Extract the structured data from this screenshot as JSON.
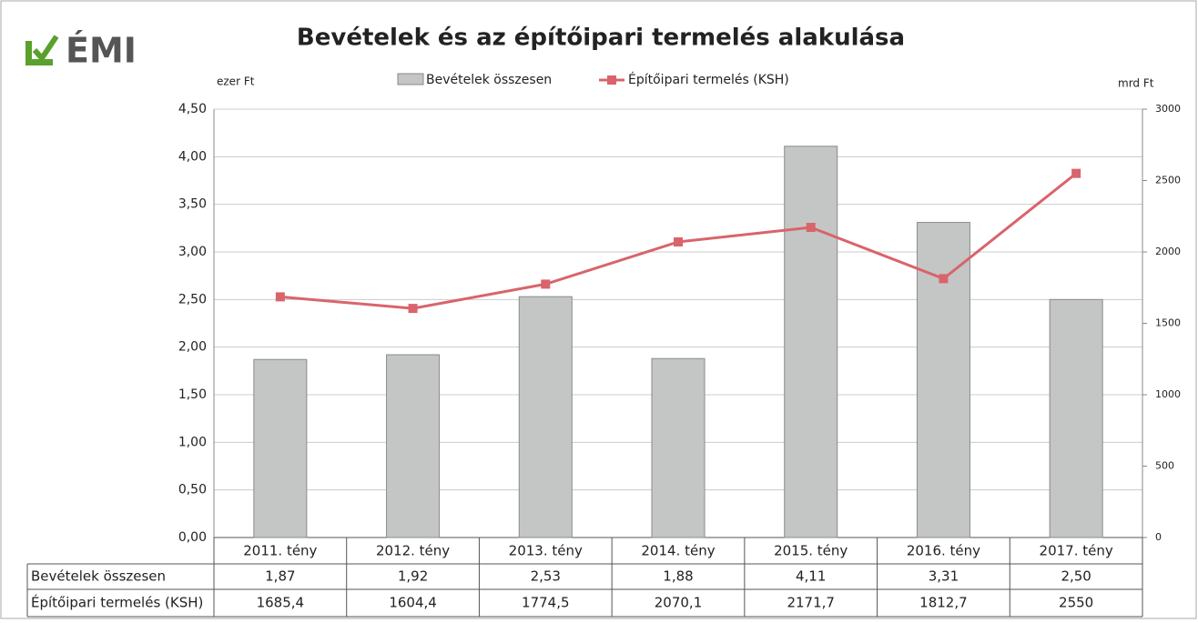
{
  "logo": "ÉMI",
  "chart_data": {
    "type": "bar",
    "title": "Bevételek és az építőipari termelés alakulása",
    "y_label": "ezer Ft",
    "y2_label": "mrd Ft",
    "categories": [
      "2011. tény",
      "2012. tény",
      "2013. tény",
      "2014. tény",
      "2015. tény",
      "2016. tény",
      "2017. tény"
    ],
    "series": [
      {
        "name": "Bevételek összesen",
        "type": "bar",
        "color": "#c4c6c6",
        "values": [
          1.87,
          1.92,
          2.53,
          1.88,
          4.11,
          3.31,
          2.5
        ],
        "value_labels": [
          "1,87",
          "1,92",
          "2,53",
          "1,88",
          "4,11",
          "3,31",
          "2,50"
        ]
      },
      {
        "name": "Építőipari termelés (KSH)",
        "type": "line",
        "axis": "y2",
        "color": "#d9646c",
        "values": [
          1685.4,
          1604.4,
          1774.5,
          2070.1,
          2171.7,
          1812.7,
          2550
        ],
        "value_labels": [
          "1685,4",
          "1604,4",
          "1774,5",
          "2070,1",
          "2171,7",
          "1812,7",
          "2550"
        ]
      }
    ],
    "ylim": [
      0,
      4.5
    ],
    "yticks": [
      {
        "value": 0,
        "label": "0,00"
      },
      {
        "value": 0.5,
        "label": "0,50"
      },
      {
        "value": 1,
        "label": "1,00"
      },
      {
        "value": 1.5,
        "label": "1,50"
      },
      {
        "value": 2,
        "label": "2,00"
      },
      {
        "value": 2.5,
        "label": "2,50"
      },
      {
        "value": 3,
        "label": "3,00"
      },
      {
        "value": 3.5,
        "label": "3,50"
      },
      {
        "value": 4,
        "label": "4,00"
      },
      {
        "value": 4.5,
        "label": "4,50"
      }
    ],
    "y2lim": [
      0,
      3000
    ],
    "y2ticks": [
      0,
      500,
      1000,
      1500,
      2000,
      2500,
      3000
    ],
    "grid": true,
    "legend": "top"
  }
}
